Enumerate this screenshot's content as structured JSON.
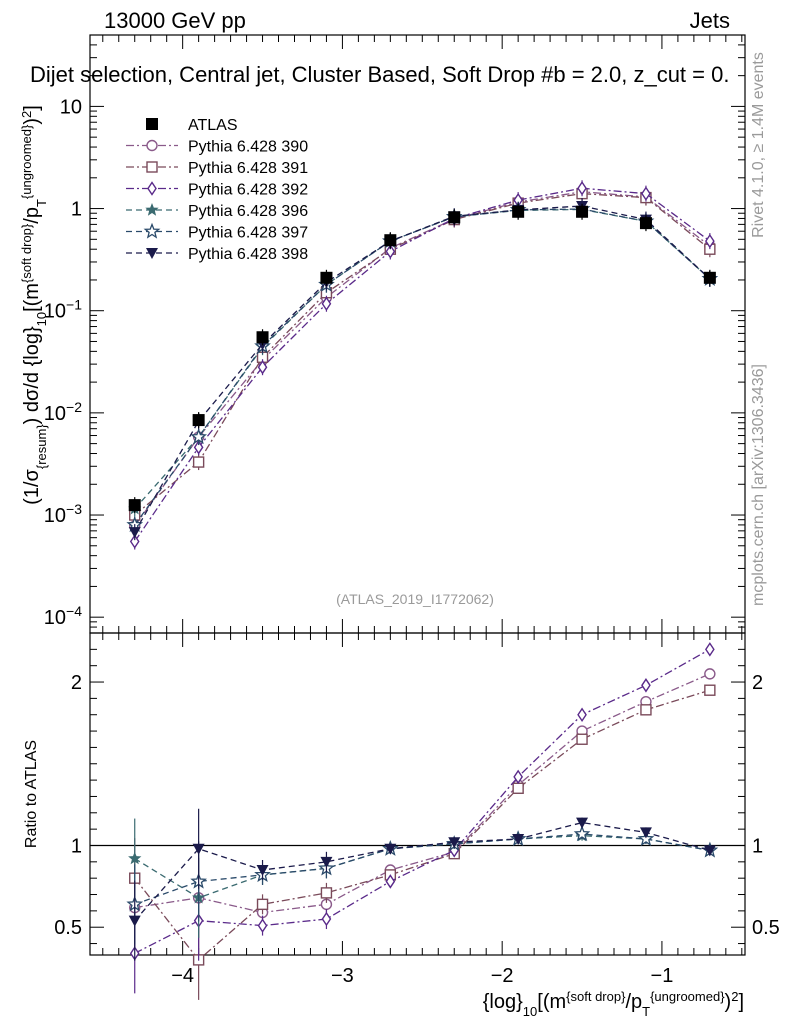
{
  "header": {
    "left": "13000 GeV pp",
    "right": "Jets",
    "title": "Dijet selection, Central jet, Cluster Based, Soft Drop #b = 2.0, z_cut = 0.",
    "analysis_id": "(ATLAS_2019_I1772062)",
    "side_rivet": "Rivet 4.1.0, ≥ 1.4M events",
    "side_mcplots": "mcplots.cern.ch [arXiv:1306.3436]"
  },
  "chart_data": [
    {
      "type": "line",
      "panel": "main",
      "yscale": "log",
      "ylabel": "(1/σ_{resum}) dσ/d {log}_10[(m^{soft drop}/p_T^{ungroomed})^2]",
      "xlabel": "",
      "xlim": [
        -4.58,
        -0.48
      ],
      "ylim": [
        7e-05,
        50
      ],
      "x": [
        -4.3,
        -3.9,
        -3.5,
        -3.1,
        -2.7,
        -2.3,
        -1.9,
        -1.5,
        -1.1,
        -0.7
      ],
      "x_tick_labels": [
        "−4",
        "−3",
        "−2",
        "−1"
      ],
      "x_tick_values": [
        -4,
        -3,
        -2,
        -1
      ],
      "y_tick_labels": [
        "10^{−4}",
        "10^{−3}",
        "10^{−2}",
        "10^{−1}",
        "1",
        "10"
      ],
      "y_tick_values": [
        0.0001,
        0.001,
        0.01,
        0.1,
        1,
        10
      ],
      "legend_position": "top-left",
      "series": [
        {
          "name": "ATLAS",
          "color": "#000000",
          "marker": "filled-square",
          "dash": "none",
          "values": [
            0.00125,
            0.0085,
            0.055,
            0.21,
            0.49,
            0.82,
            0.93,
            0.93,
            0.72,
            0.21
          ]
        },
        {
          "name": "Pythia 6.428 390",
          "color": "#8a5a8a",
          "marker": "open-circle",
          "dash": "dashdot",
          "values": [
            0.00078,
            0.0058,
            0.033,
            0.135,
            0.41,
            0.79,
            1.16,
            1.46,
            1.3,
            0.43
          ]
        },
        {
          "name": "Pythia 6.428 391",
          "color": "#7a4a5a",
          "marker": "open-square",
          "dash": "dashdot",
          "values": [
            0.001,
            0.0033,
            0.035,
            0.15,
            0.4,
            0.78,
            1.13,
            1.4,
            1.28,
            0.4
          ]
        },
        {
          "name": "Pythia 6.428 392",
          "color": "#5a2a8a",
          "marker": "open-diamond",
          "dash": "dashdot",
          "values": [
            0.00055,
            0.0046,
            0.028,
            0.117,
            0.38,
            0.8,
            1.21,
            1.58,
            1.4,
            0.48
          ]
        },
        {
          "name": "Pythia 6.428 396",
          "color": "#3a6a70",
          "marker": "filled-star",
          "dash": "dashed",
          "values": [
            0.00115,
            0.0058,
            0.044,
            0.18,
            0.48,
            0.83,
            0.96,
            0.98,
            0.75,
            0.205
          ]
        },
        {
          "name": "Pythia 6.428 397",
          "color": "#2a4a6a",
          "marker": "open-star",
          "dash": "dashed",
          "values": [
            0.0008,
            0.0058,
            0.045,
            0.18,
            0.48,
            0.83,
            0.97,
            0.99,
            0.75,
            0.205
          ]
        },
        {
          "name": "Pythia 6.428 398",
          "color": "#1a1a4a",
          "marker": "filled-triangle-down",
          "dash": "dashed",
          "values": [
            0.00068,
            0.0083,
            0.047,
            0.19,
            0.48,
            0.84,
            0.97,
            1.06,
            0.78,
            0.205
          ]
        }
      ]
    },
    {
      "type": "line",
      "panel": "ratio",
      "ylabel": "Ratio to ATLAS",
      "xlabel": "{log}_10[(m^{soft drop}/p_T^{ungroomed})^2]",
      "xlim": [
        -4.58,
        -0.48
      ],
      "ylim": [
        0.33,
        2.3
      ],
      "reference_line": 1,
      "x": [
        -4.3,
        -3.9,
        -3.5,
        -3.1,
        -2.7,
        -2.3,
        -1.9,
        -1.5,
        -1.1,
        -0.7
      ],
      "y_tick_labels": [
        "0.5",
        "1",
        "2"
      ],
      "y_tick_values": [
        0.5,
        1,
        2
      ],
      "series": [
        {
          "name": "Pythia 6.428 390",
          "values": [
            0.62,
            0.68,
            0.59,
            0.64,
            0.85,
            0.96,
            1.37,
            1.7,
            1.88,
            2.05
          ]
        },
        {
          "name": "Pythia 6.428 391",
          "values": [
            0.8,
            0.3,
            0.64,
            0.71,
            0.82,
            0.95,
            1.35,
            1.65,
            1.83,
            1.95
          ]
        },
        {
          "name": "Pythia 6.428 392",
          "values": [
            0.34,
            0.54,
            0.51,
            0.55,
            0.78,
            0.97,
            1.42,
            1.8,
            1.98,
            2.2
          ]
        },
        {
          "name": "Pythia 6.428 396",
          "values": [
            0.92,
            0.68,
            0.82,
            0.86,
            0.98,
            1.01,
            1.04,
            1.06,
            1.04,
            0.97
          ]
        },
        {
          "name": "Pythia 6.428 397",
          "values": [
            0.64,
            0.78,
            0.82,
            0.86,
            0.98,
            1.01,
            1.04,
            1.07,
            1.04,
            0.97
          ]
        },
        {
          "name": "Pythia 6.428 398",
          "values": [
            0.54,
            0.98,
            0.85,
            0.9,
            0.98,
            1.02,
            1.04,
            1.14,
            1.08,
            0.97
          ]
        }
      ]
    }
  ]
}
